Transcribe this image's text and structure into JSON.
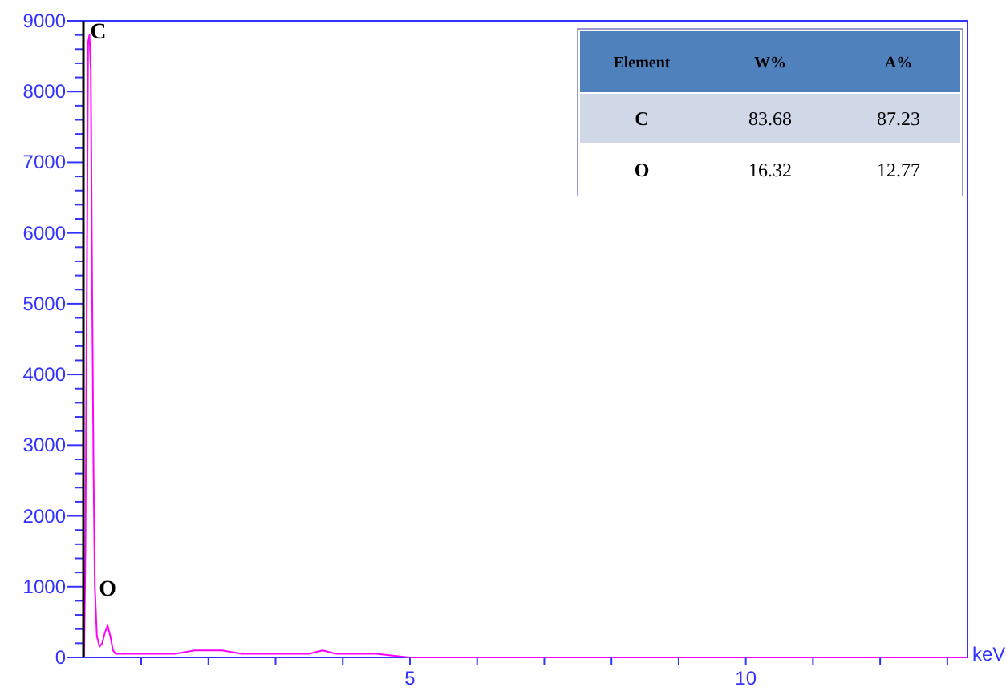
{
  "chart_data": {
    "type": "line",
    "xlabel": "keV",
    "xlim": [
      0.14,
      13.3
    ],
    "ylim": [
      0,
      9000
    ],
    "xticks": [
      {
        "value": 1,
        "label": null
      },
      {
        "value": 2,
        "label": null
      },
      {
        "value": 3,
        "label": null
      },
      {
        "value": 4,
        "label": null
      },
      5,
      {
        "value": 6,
        "label": null
      },
      {
        "value": 7,
        "label": null
      },
      {
        "value": 8,
        "label": null
      },
      {
        "value": 9,
        "label": null
      },
      10,
      {
        "value": 11,
        "label": null
      },
      {
        "value": 12,
        "label": null
      },
      {
        "value": 13,
        "label": null
      }
    ],
    "yticks": [
      0,
      {
        "value": 200,
        "label": null
      },
      {
        "value": 400,
        "label": null
      },
      {
        "value": 600,
        "label": null
      },
      {
        "value": 800,
        "label": null
      },
      1000,
      {
        "value": 1200,
        "label": null
      },
      {
        "value": 1400,
        "label": null
      },
      {
        "value": 1600,
        "label": null
      },
      {
        "value": 1800,
        "label": null
      },
      2000,
      {
        "value": 2200,
        "label": null
      },
      {
        "value": 2400,
        "label": null
      },
      {
        "value": 2600,
        "label": null
      },
      {
        "value": 2800,
        "label": null
      },
      3000,
      {
        "value": 3200,
        "label": null
      },
      {
        "value": 3400,
        "label": null
      },
      {
        "value": 3600,
        "label": null
      },
      {
        "value": 3800,
        "label": null
      },
      4000,
      {
        "value": 4200,
        "label": null
      },
      {
        "value": 4400,
        "label": null
      },
      {
        "value": 4600,
        "label": null
      },
      {
        "value": 4800,
        "label": null
      },
      5000,
      {
        "value": 5200,
        "label": null
      },
      {
        "value": 5400,
        "label": null
      },
      {
        "value": 5600,
        "label": null
      },
      {
        "value": 5800,
        "label": null
      },
      6000,
      {
        "value": 6200,
        "label": null
      },
      {
        "value": 6400,
        "label": null
      },
      {
        "value": 6600,
        "label": null
      },
      {
        "value": 6800,
        "label": null
      },
      7000,
      {
        "value": 7200,
        "label": null
      },
      {
        "value": 7400,
        "label": null
      },
      {
        "value": 7600,
        "label": null
      },
      {
        "value": 7800,
        "label": null
      },
      8000,
      {
        "value": 8200,
        "label": null
      },
      {
        "value": 8400,
        "label": null
      },
      {
        "value": 8600,
        "label": null
      },
      {
        "value": 8800,
        "label": null
      },
      9000
    ],
    "grid": false,
    "series": [
      {
        "color": "#ff00ff",
        "x": [
          0.15,
          0.17,
          0.19,
          0.21,
          0.23,
          0.25,
          0.27,
          0.29,
          0.31,
          0.34,
          0.38,
          0.42,
          0.46,
          0.5,
          0.54,
          0.58,
          0.62,
          0.7,
          0.9,
          1.2,
          1.5,
          1.8,
          2.0,
          2.2,
          2.5,
          2.8,
          3.0,
          3.3,
          3.5,
          3.7,
          3.9,
          4.2,
          4.5,
          5.0,
          5.5,
          6.0,
          7.0,
          8.0,
          9.0,
          10.0,
          11.0,
          12.0,
          13.3
        ],
        "values": [
          0,
          1500,
          5000,
          8700,
          8800,
          8300,
          5200,
          2700,
          1000,
          300,
          150,
          200,
          350,
          450,
          300,
          100,
          50,
          50,
          50,
          50,
          50,
          100,
          100,
          100,
          50,
          50,
          50,
          50,
          50,
          100,
          50,
          50,
          50,
          0,
          0,
          0,
          0,
          0,
          0,
          0,
          0,
          0,
          0
        ]
      }
    ],
    "annotations": [
      {
        "text": "C",
        "x": 0.24,
        "y": 8800
      },
      {
        "text": "O",
        "x": 0.5,
        "y": 470
      },
      "Element",
      "W%",
      "A%",
      "C",
      "83.68",
      "87.23",
      "O",
      "16.32",
      "12.77"
    ]
  }
}
